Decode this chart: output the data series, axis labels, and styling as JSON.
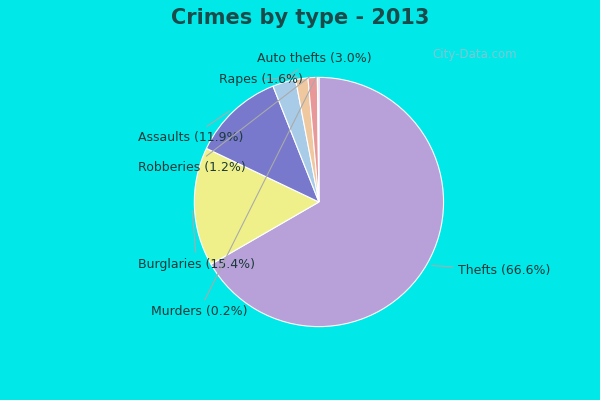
{
  "title": "Crimes by type - 2013",
  "labels": [
    "Thefts",
    "Burglaries",
    "Assaults",
    "Auto thefts",
    "Rapes",
    "Robberies",
    "Murders"
  ],
  "values": [
    66.6,
    15.4,
    11.9,
    3.0,
    1.6,
    1.2,
    0.2
  ],
  "colors": [
    "#b8a0d8",
    "#f0f08a",
    "#7878cc",
    "#a8cce8",
    "#f0c8a0",
    "#e89898",
    "#c8c8d8"
  ],
  "background_cyan": "#00e8e8",
  "background_body": "#cceedd",
  "title_fontsize": 15,
  "label_fontsize": 9,
  "wedge_labels": [
    "Thefts (66.6%)",
    "Burglaries (15.4%)",
    "Assaults (11.9%)",
    "Auto thefts (3.0%)",
    "Rapes (1.6%)",
    "Robberies (1.2%)",
    "Murders (0.2%)"
  ],
  "title_color": "#1a4a4a",
  "label_color": "#1a3a3a",
  "watermark": "City-Data.com"
}
